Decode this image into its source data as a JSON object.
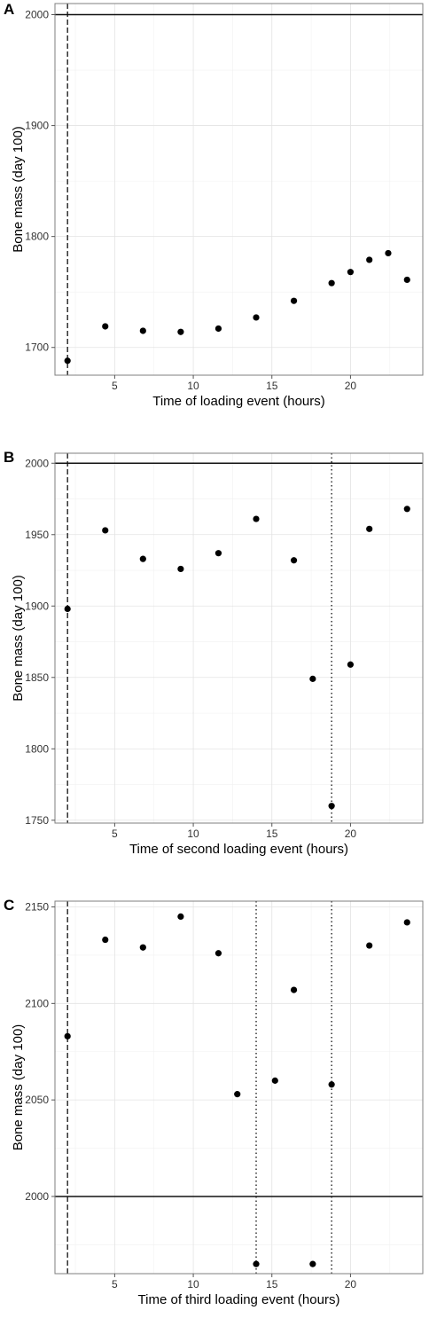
{
  "chart_data": [
    {
      "panel": "A",
      "type": "scatter",
      "xlabel": "Time of loading event (hours)",
      "ylabel": "Bone mass (day 100)",
      "xlim": [
        1.2,
        24.6
      ],
      "ylim": [
        1675,
        2010
      ],
      "x_ticks": [
        5,
        10,
        15,
        20
      ],
      "y_ticks": [
        1700,
        1800,
        1900,
        2000
      ],
      "grid": true,
      "points": [
        {
          "x": 2,
          "y": 1688
        },
        {
          "x": 4.4,
          "y": 1719
        },
        {
          "x": 6.8,
          "y": 1715
        },
        {
          "x": 9.2,
          "y": 1714
        },
        {
          "x": 11.6,
          "y": 1717
        },
        {
          "x": 14,
          "y": 1727
        },
        {
          "x": 16.4,
          "y": 1742
        },
        {
          "x": 18.8,
          "y": 1758
        },
        {
          "x": 20,
          "y": 1768
        },
        {
          "x": 21.2,
          "y": 1779
        },
        {
          "x": 22.4,
          "y": 1785
        },
        {
          "x": 23.6,
          "y": 1761
        }
      ],
      "hlines": [
        {
          "y": 2000,
          "style": "solid"
        }
      ],
      "vlines": [
        {
          "x": 2,
          "style": "dashed"
        }
      ]
    },
    {
      "panel": "B",
      "type": "scatter",
      "xlabel": "Time of second loading event (hours)",
      "ylabel": "Bone mass (day 100)",
      "xlim": [
        1.2,
        24.6
      ],
      "ylim": [
        1748,
        2007
      ],
      "x_ticks": [
        5,
        10,
        15,
        20
      ],
      "y_ticks": [
        1750,
        1800,
        1850,
        1900,
        1950,
        2000
      ],
      "grid": true,
      "points": [
        {
          "x": 2,
          "y": 1898
        },
        {
          "x": 4.4,
          "y": 1953
        },
        {
          "x": 6.8,
          "y": 1933
        },
        {
          "x": 9.2,
          "y": 1926
        },
        {
          "x": 11.6,
          "y": 1937
        },
        {
          "x": 14,
          "y": 1961
        },
        {
          "x": 16.4,
          "y": 1932
        },
        {
          "x": 17.6,
          "y": 1849
        },
        {
          "x": 18.8,
          "y": 1760
        },
        {
          "x": 20,
          "y": 1859
        },
        {
          "x": 21.2,
          "y": 1954
        },
        {
          "x": 23.6,
          "y": 1968
        }
      ],
      "hlines": [
        {
          "y": 2000,
          "style": "solid"
        }
      ],
      "vlines": [
        {
          "x": 2,
          "style": "dashed"
        },
        {
          "x": 18.8,
          "style": "dotted"
        }
      ]
    },
    {
      "panel": "C",
      "type": "scatter",
      "xlabel": "Time of third loading event (hours)",
      "ylabel": "Bone mass (day 100)",
      "xlim": [
        1.2,
        24.6
      ],
      "ylim": [
        1960,
        2153
      ],
      "x_ticks": [
        5,
        10,
        15,
        20
      ],
      "y_ticks": [
        2000,
        2050,
        2100,
        2150
      ],
      "grid": true,
      "points": [
        {
          "x": 2,
          "y": 2083
        },
        {
          "x": 4.4,
          "y": 2133
        },
        {
          "x": 6.8,
          "y": 2129
        },
        {
          "x": 9.2,
          "y": 2145
        },
        {
          "x": 11.6,
          "y": 2126
        },
        {
          "x": 12.8,
          "y": 2053
        },
        {
          "x": 14,
          "y": 1965
        },
        {
          "x": 15.2,
          "y": 2060
        },
        {
          "x": 16.4,
          "y": 2107
        },
        {
          "x": 17.6,
          "y": 1965
        },
        {
          "x": 18.8,
          "y": 2058
        },
        {
          "x": 21.2,
          "y": 2130
        },
        {
          "x": 23.6,
          "y": 2142
        }
      ],
      "hlines": [
        {
          "y": 2000,
          "style": "solid"
        }
      ],
      "vlines": [
        {
          "x": 2,
          "style": "dashed"
        },
        {
          "x": 14,
          "style": "dotted"
        },
        {
          "x": 18.8,
          "style": "dotted"
        }
      ]
    }
  ]
}
